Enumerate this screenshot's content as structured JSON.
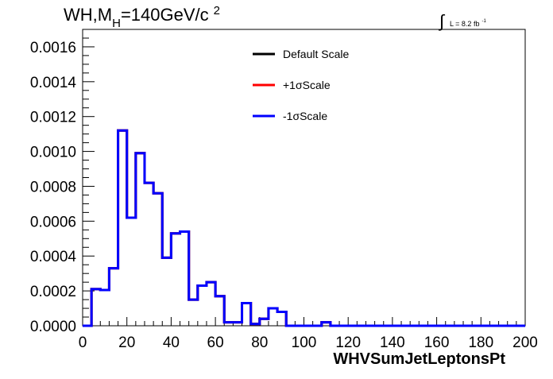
{
  "chart_data": {
    "type": "histogram",
    "title_prefix": "WH,M",
    "title_sub": "H",
    "title_suffix": "=140GeV/c",
    "title_sup": "2",
    "lumi_label": "L = 8.2 fb",
    "lumi_sup": "-1",
    "xlabel": "WHVSumJetLeptonsPt",
    "ylabel": "",
    "xlim": [
      0,
      200
    ],
    "ylim": [
      0,
      0.0017
    ],
    "x_ticks": [
      0,
      20,
      40,
      60,
      80,
      100,
      120,
      140,
      160,
      180,
      200
    ],
    "x_tick_labels": [
      "0",
      "20",
      "40",
      "60",
      "80",
      "100",
      "120",
      "140",
      "160",
      "180",
      "200"
    ],
    "y_ticks": [
      0,
      0.0002,
      0.0004,
      0.0006,
      0.0008,
      0.001,
      0.0012,
      0.0014,
      0.0016
    ],
    "y_tick_labels": [
      "0.0000",
      "0.0002",
      "0.0004",
      "0.0006",
      "0.0008",
      "0.0010",
      "0.0012",
      "0.0014",
      "0.0016"
    ],
    "bin_width": 4,
    "bin_edges_start": 0,
    "series": [
      {
        "name": "Default Scale",
        "color": "#000000",
        "values": [
          0,
          0.00021,
          0.000205,
          0.00033,
          0.00112,
          0.00062,
          0.00099,
          0.00082,
          0.00076,
          0.00039,
          0.00053,
          0.00054,
          0.00015,
          0.00023,
          0.00025,
          0.00017,
          2e-05,
          2e-05,
          0.00013,
          1e-05,
          4e-05,
          0.0001,
          8e-05,
          0,
          0,
          0,
          0,
          2e-05,
          0,
          0,
          0,
          0,
          0,
          0,
          0,
          0,
          0,
          0,
          0,
          0,
          0,
          0,
          0,
          0,
          0,
          0,
          0,
          0,
          0,
          0
        ]
      },
      {
        "name": "+1σScale",
        "color": "#ff0000",
        "values": [
          0,
          0.00021,
          0.000205,
          0.00033,
          0.00112,
          0.00062,
          0.00099,
          0.00082,
          0.00076,
          0.00039,
          0.00053,
          0.00054,
          0.00015,
          0.00023,
          0.00025,
          0.00017,
          2e-05,
          2e-05,
          0.00013,
          1e-05,
          4e-05,
          0.0001,
          8e-05,
          0,
          0,
          0,
          0,
          2e-05,
          0,
          0,
          0,
          0,
          0,
          0,
          0,
          0,
          0,
          0,
          0,
          0,
          0,
          0,
          0,
          0,
          0,
          0,
          0,
          0,
          0,
          0
        ]
      },
      {
        "name": "-1σScale",
        "color": "#0000ff",
        "values": [
          0,
          0.00021,
          0.000205,
          0.00033,
          0.00112,
          0.00062,
          0.00099,
          0.00082,
          0.00076,
          0.00039,
          0.00053,
          0.00054,
          0.00015,
          0.00023,
          0.00025,
          0.00017,
          2e-05,
          2e-05,
          0.00013,
          1e-05,
          4e-05,
          0.0001,
          8e-05,
          0,
          0,
          0,
          0,
          2e-05,
          0,
          0,
          0,
          0,
          0,
          0,
          0,
          0,
          0,
          0,
          0,
          0,
          0,
          0,
          0,
          0,
          0,
          0,
          0,
          0,
          0,
          0
        ]
      }
    ],
    "legend_position": "top-center",
    "grid": false
  }
}
